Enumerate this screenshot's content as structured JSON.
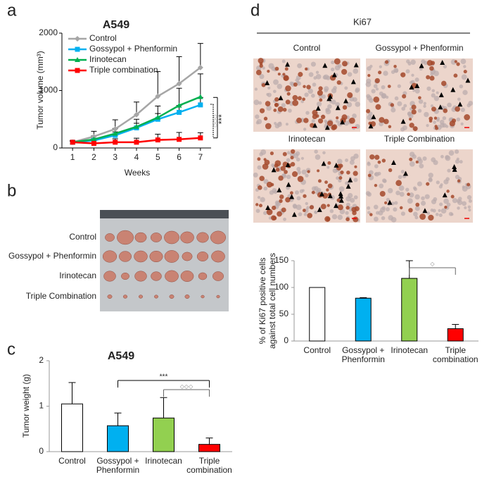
{
  "panel_labels": [
    "a",
    "b",
    "c",
    "d"
  ],
  "tumor_photo": {
    "row_labels": [
      "Control",
      "Gossypol + Phenformin",
      "Irinotecan",
      "Triple  Combination"
    ]
  },
  "ki67_images": {
    "title": "Ki67",
    "labels": [
      "Control",
      "Gossypol + Phenformin",
      "Irinotecan",
      "Triple  Combination"
    ]
  },
  "chart_data": [
    {
      "type": "line",
      "title": "A549",
      "x_label": "Weeks",
      "y_label": "Tumor volume (mm³)",
      "x": [
        1,
        2,
        3,
        4,
        5,
        6,
        7
      ],
      "xlim": [
        0.5,
        7.5
      ],
      "xticks": [
        1,
        2,
        3,
        4,
        5,
        6,
        7
      ],
      "ylim": [
        0,
        2000
      ],
      "yticks": [
        0,
        1000,
        2000
      ],
      "legend": "upper left",
      "series": [
        {
          "name": "Control",
          "color": "#a6a6a6",
          "marker": "diamond",
          "values": [
            100,
            200,
            330,
            580,
            900,
            1120,
            1400
          ],
          "errors": [
            30,
            90,
            160,
            220,
            430,
            470,
            420
          ]
        },
        {
          "name": "Gossypol + Phenformin",
          "color": "#00b0f0",
          "marker": "square",
          "values": [
            100,
            130,
            220,
            350,
            500,
            620,
            750
          ],
          "errors": [
            20,
            40,
            60,
            80,
            100,
            120,
            130
          ]
        },
        {
          "name": "Irinotecan",
          "color": "#00b050",
          "marker": "triangle",
          "values": [
            100,
            150,
            250,
            370,
            530,
            740,
            890
          ],
          "errors": [
            20,
            60,
            90,
            130,
            200,
            300,
            400
          ]
        },
        {
          "name": "Triple combination",
          "color": "#ff0000",
          "marker": "square",
          "values": [
            100,
            80,
            100,
            100,
            140,
            150,
            175
          ],
          "errors": [
            20,
            50,
            60,
            70,
            100,
            120,
            90
          ]
        }
      ],
      "annotations": [
        "***",
        "◇◇◇"
      ]
    },
    {
      "type": "bar",
      "title": "A549",
      "y_label": "Tumor weight (g)",
      "categories": [
        [
          "Control"
        ],
        [
          "Gossypol +",
          "Phenformin"
        ],
        [
          "Irinotecan"
        ],
        [
          "Triple",
          "combination"
        ]
      ],
      "values": [
        1.05,
        0.57,
        0.74,
        0.16
      ],
      "errors": [
        0.47,
        0.28,
        0.45,
        0.14
      ],
      "colors": [
        "#ffffff",
        "#00b0f0",
        "#92d050",
        "#ff0000"
      ],
      "ylim": [
        0,
        2
      ],
      "yticks": [
        0,
        1,
        2
      ],
      "annotations": [
        "***",
        "◇◇◇"
      ]
    },
    {
      "type": "bar",
      "y_label": [
        "% of Ki67 positive cells",
        "against total cell numbers"
      ],
      "categories": [
        [
          "Control"
        ],
        [
          "Gossypol +",
          "Phenformin"
        ],
        [
          "Irinotecan"
        ],
        [
          "Triple",
          "combination"
        ]
      ],
      "values": [
        100,
        80,
        117,
        23
      ],
      "errors": [
        0,
        1,
        33,
        8
      ],
      "colors": [
        "#ffffff",
        "#00b0f0",
        "#92d050",
        "#ff0000"
      ],
      "ylim": [
        0,
        150
      ],
      "yticks": [
        0,
        50,
        100,
        150
      ],
      "annotations": [
        "◇"
      ]
    }
  ]
}
